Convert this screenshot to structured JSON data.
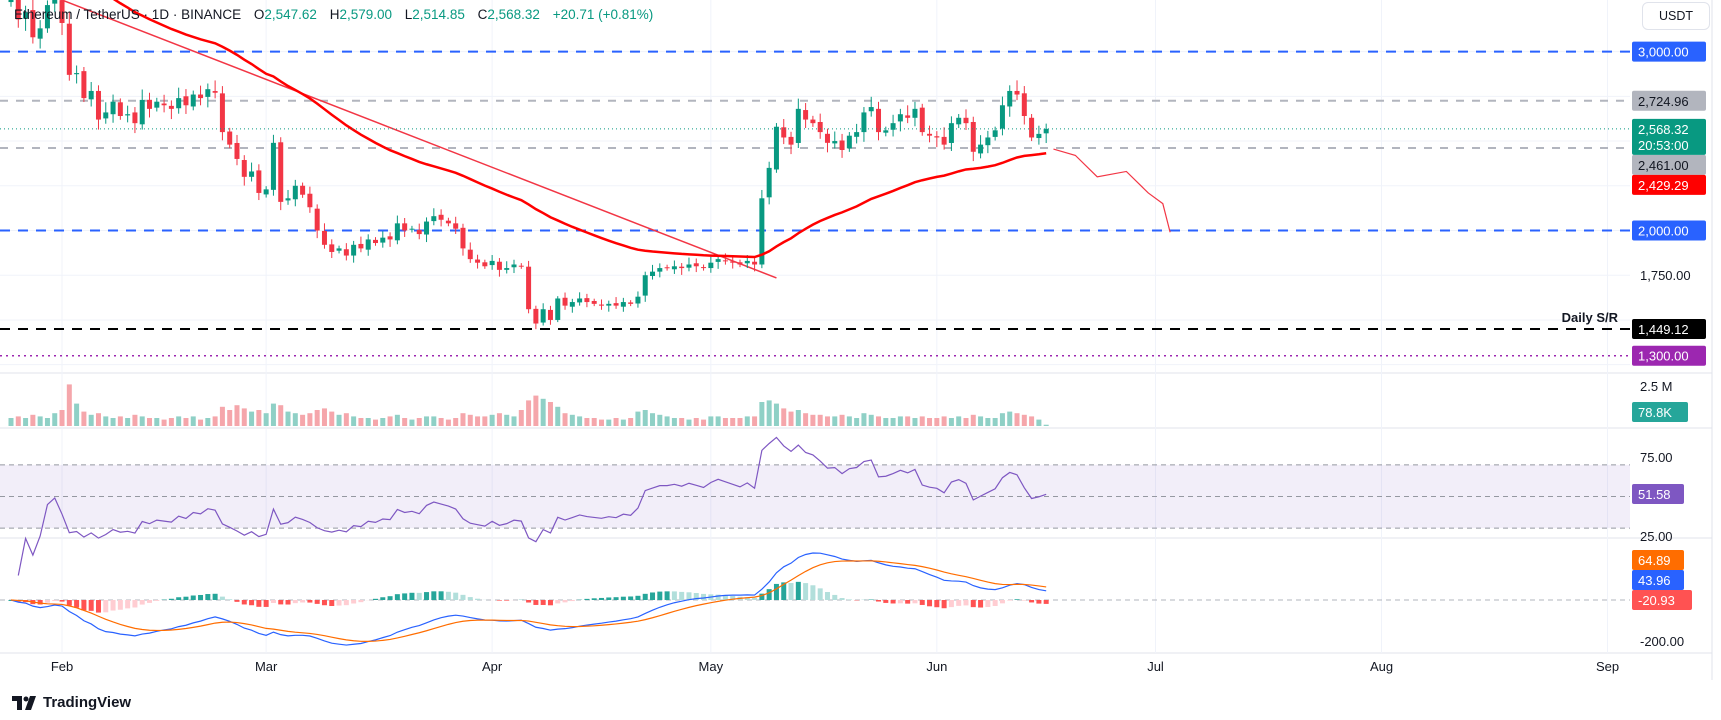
{
  "header": {
    "symbol": "Ethereum / TetherUS · 1D · BINANCE",
    "open_label": "O",
    "open": "2,547.62",
    "high_label": "H",
    "high": "2,579.00",
    "low_label": "L",
    "low": "2,514.85",
    "close_label": "C",
    "close": "2,568.32",
    "change": "+20.71 (+0.81%)"
  },
  "currency": "USDT",
  "branding": "TradingView",
  "colors": {
    "up": "#089981",
    "down": "#f23645",
    "ma": "#ff0000",
    "blue_level": "#2962ff",
    "purple_level": "#9c27b0",
    "rsi": "#7e57c2",
    "macd": "#2962ff",
    "signal": "#ff6d00"
  },
  "chart_data": {
    "type": "candlestick",
    "start_date": "2025-01-25",
    "closes": [
      3310,
      3180,
      3220,
      3080,
      3130,
      3260,
      3300,
      3160,
      2870,
      2880,
      2740,
      2780,
      2620,
      2660,
      2720,
      2640,
      2650,
      2600,
      2730,
      2680,
      2720,
      2700,
      2680,
      2740,
      2700,
      2760,
      2740,
      2790,
      2770,
      2550,
      2480,
      2400,
      2300,
      2330,
      2210,
      2230,
      2490,
      2160,
      2180,
      2250,
      2200,
      2130,
      2000,
      1920,
      1880,
      1900,
      1860,
      1920,
      1900,
      1950,
      1930,
      1960,
      1950,
      2040,
      2000,
      2010,
      1980,
      2050,
      2080,
      2060,
      2040,
      2010,
      1900,
      1840,
      1820,
      1800,
      1830,
      1780,
      1790,
      1810,
      1800,
      1560,
      1480,
      1560,
      1500,
      1620,
      1580,
      1600,
      1620,
      1600,
      1590,
      1580,
      1590,
      1580,
      1600,
      1590,
      1630,
      1750,
      1770,
      1790,
      1790,
      1800,
      1790,
      1810,
      1800,
      1790,
      1820,
      1840,
      1830,
      1820,
      1810,
      1830,
      1810,
      2180,
      2350,
      2580,
      2520,
      2480,
      2680,
      2620,
      2600,
      2550,
      2490,
      2500,
      2450,
      2530,
      2550,
      2660,
      2690,
      2550,
      2560,
      2600,
      2650,
      2630,
      2680,
      2550,
      2530,
      2520,
      2480,
      2600,
      2630,
      2600,
      2440,
      2480,
      2520,
      2560,
      2700,
      2780,
      2760,
      2640,
      2520,
      2540,
      2568.32
    ],
    "volumes_millions": [
      0.5,
      0.6,
      0.5,
      0.7,
      0.6,
      0.5,
      0.8,
      1.0,
      2.6,
      1.4,
      0.9,
      0.7,
      0.8,
      0.6,
      0.5,
      0.6,
      0.5,
      0.7,
      0.6,
      0.5,
      0.5,
      0.4,
      0.5,
      0.6,
      0.5,
      0.6,
      0.4,
      0.5,
      0.6,
      1.2,
      1.0,
      1.3,
      1.1,
      0.9,
      1.0,
      0.8,
      1.4,
      1.3,
      0.9,
      0.8,
      0.7,
      0.8,
      1.0,
      1.1,
      0.9,
      0.7,
      0.8,
      0.6,
      0.5,
      0.5,
      0.4,
      0.5,
      0.6,
      0.7,
      0.5,
      0.4,
      0.5,
      0.6,
      0.6,
      0.5,
      0.4,
      0.5,
      0.8,
      0.7,
      0.6,
      0.6,
      0.7,
      0.8,
      0.7,
      0.6,
      1.0,
      1.6,
      1.9,
      1.7,
      1.5,
      1.2,
      0.8,
      0.7,
      0.6,
      0.5,
      0.5,
      0.4,
      0.4,
      0.5,
      0.4,
      0.5,
      0.9,
      1.0,
      0.8,
      0.7,
      0.6,
      0.5,
      0.5,
      0.4,
      0.5,
      0.4,
      0.6,
      0.6,
      0.5,
      0.5,
      0.5,
      0.6,
      0.6,
      1.5,
      1.6,
      1.4,
      1.1,
      0.9,
      1.0,
      0.8,
      0.7,
      0.7,
      0.6,
      0.6,
      0.7,
      0.6,
      0.5,
      0.8,
      0.7,
      0.6,
      0.5,
      0.5,
      0.6,
      0.6,
      0.5,
      0.6,
      0.5,
      0.5,
      0.6,
      0.5,
      0.6,
      0.5,
      0.7,
      0.6,
      0.5,
      0.5,
      0.8,
      0.9,
      0.8,
      0.7,
      0.6,
      0.4,
      0.08
    ],
    "price_axis": {
      "min": 1130,
      "max": 3290,
      "ticks": [
        "1,750.00"
      ]
    },
    "time_axis": {
      "labels": [
        {
          "date": "2025-02-01",
          "label": "Feb"
        },
        {
          "date": "2025-03-01",
          "label": "Mar"
        },
        {
          "date": "2025-04-01",
          "label": "Apr"
        },
        {
          "date": "2025-05-01",
          "label": "May"
        },
        {
          "date": "2025-06-01",
          "label": "Jun"
        },
        {
          "date": "2025-07-01",
          "label": "Jul"
        },
        {
          "date": "2025-08-01",
          "label": "Aug"
        },
        {
          "date": "2025-09-01",
          "label": "Sep"
        }
      ]
    },
    "levels": [
      {
        "price": 3000,
        "label": "3,000.00",
        "style": "dashed",
        "color": "#2962ff",
        "text_color": "#ffffff"
      },
      {
        "price": 2724.96,
        "label": "2,724.96",
        "style": "dashed",
        "color": "#b2b5be",
        "badge": "#b2b5be",
        "text_color": "#131722"
      },
      {
        "price": 2461,
        "label": "2,461.00",
        "style": "dashed",
        "color": "#b2b5be",
        "badge": "#b2b5be",
        "text_color": "#131722"
      },
      {
        "price": 2000,
        "label": "2,000.00",
        "style": "dashed",
        "color": "#2962ff",
        "text_color": "#ffffff"
      },
      {
        "price": 1449.12,
        "label": "1,449.12",
        "style": "dashed",
        "color": "#000000",
        "text_color": "#ffffff",
        "note": "Daily S/R"
      },
      {
        "price": 1300,
        "label": "1,300.00",
        "style": "dotted",
        "color": "#9c27b0",
        "text_color": "#ffffff"
      }
    ],
    "last_price": {
      "price": 2568.32,
      "label": "2,568.32",
      "countdown": "20:53:00",
      "color": "#089981"
    },
    "moving_average": {
      "period": 50,
      "last_label": "2,429.29"
    },
    "trendline": [
      [
        "2025-01-30",
        3320
      ],
      [
        "2025-05-10",
        1735
      ]
    ],
    "projection": [
      [
        "2025-06-17",
        2455
      ],
      [
        "2025-06-20",
        2420
      ],
      [
        "2025-06-23",
        2300
      ],
      [
        "2025-06-27",
        2330
      ],
      [
        "2025-06-30",
        2210
      ],
      [
        "2025-07-02",
        2150
      ],
      [
        "2025-07-03",
        1990
      ]
    ],
    "volume_axis": {
      "tick": "2.5 M",
      "last_label": "78.8K"
    },
    "rsi": {
      "period": 14,
      "ticks": [
        "75.00",
        "25.00"
      ],
      "last_label": "51.58",
      "band": [
        30,
        70
      ]
    },
    "macd": {
      "fast": 12,
      "slow": 26,
      "signal": 9,
      "ticks": [
        "-200.00"
      ],
      "signal_label": "64.89",
      "macd_label": "43.96",
      "hist_label": "-20.93"
    }
  }
}
